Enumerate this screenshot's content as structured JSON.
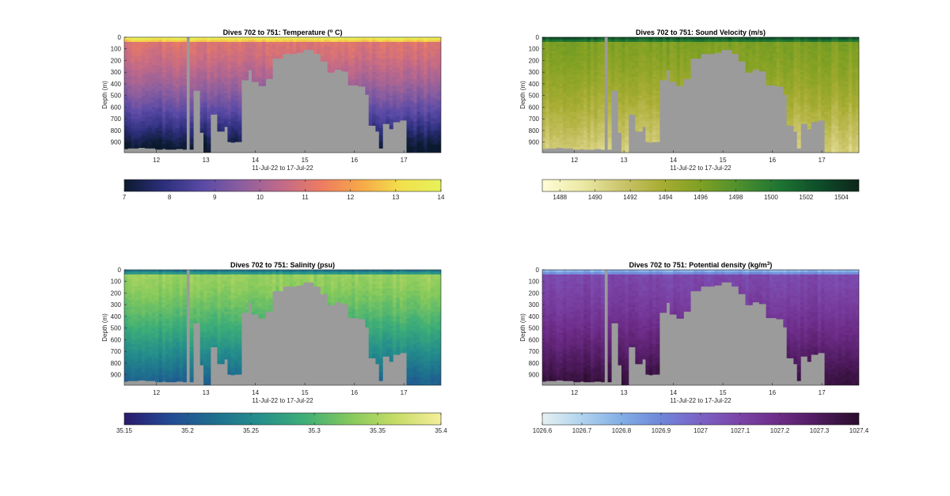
{
  "chart_data": [
    {
      "type": "heatmap",
      "title": "Dives 702 to 751: Temperature (",
      "title_sup": "o",
      "title_suffix": " C)",
      "xlabel": "11-Jul-22 to 17-Jul-22",
      "ylabel": "Depth (m)",
      "x_range": [
        11.35,
        17.75
      ],
      "y_range": [
        0,
        990
      ],
      "x_ticks": [
        "12",
        "13",
        "14",
        "15",
        "16",
        "17"
      ],
      "y_ticks": [
        "0",
        "100",
        "200",
        "300",
        "400",
        "500",
        "600",
        "700",
        "800",
        "900"
      ],
      "colorbar": {
        "min": 7,
        "max": 14,
        "ticks": [
          "7",
          "8",
          "9",
          "10",
          "11",
          "12",
          "13",
          "14"
        ],
        "colors": [
          "#0b1a2e",
          "#2d2f7c",
          "#5a4aa6",
          "#8e5f9e",
          "#c26a88",
          "#ee7c61",
          "#f6a948",
          "#f2e14c",
          "#e6f15a"
        ]
      },
      "value_profile": {
        "surface": 14,
        "mixed": 11,
        "deep": 7
      }
    },
    {
      "type": "heatmap",
      "title": "Dives 702 to 751: Sound Velocity (m/s)",
      "xlabel": "11-Jul-22 to 17-Jul-22",
      "ylabel": "Depth (m)",
      "x_range": [
        11.35,
        17.75
      ],
      "y_range": [
        0,
        990
      ],
      "x_ticks": [
        "12",
        "13",
        "14",
        "15",
        "16",
        "17"
      ],
      "y_ticks": [
        "0",
        "100",
        "200",
        "300",
        "400",
        "500",
        "600",
        "700",
        "800",
        "900"
      ],
      "colorbar": {
        "min": 1487,
        "max": 1505,
        "ticks": [
          "1488",
          "1490",
          "1492",
          "1494",
          "1496",
          "1498",
          "1500",
          "1502",
          "1504"
        ],
        "colors": [
          "#fefdd7",
          "#ece9a6",
          "#cbc56c",
          "#a8ad33",
          "#7fa023",
          "#4c8f2e",
          "#1e7432",
          "#0e4d2a",
          "#0d261a"
        ]
      },
      "value_profile": {
        "surface": 1503,
        "mixed": 1496,
        "deep": 1491
      }
    },
    {
      "type": "heatmap",
      "title": "Dives 702 to 751: Salinity (psu)",
      "xlabel": "11-Jul-22 to 17-Jul-22",
      "ylabel": "Depth (m)",
      "x_range": [
        11.35,
        17.75
      ],
      "y_range": [
        0,
        990
      ],
      "x_ticks": [
        "12",
        "13",
        "14",
        "15",
        "16",
        "17"
      ],
      "y_ticks": [
        "0",
        "100",
        "200",
        "300",
        "400",
        "500",
        "600",
        "700",
        "800",
        "900"
      ],
      "colorbar": {
        "min": 35.15,
        "max": 35.4,
        "ticks": [
          "35.15",
          "35.2",
          "35.25",
          "35.3",
          "35.35",
          "35.4"
        ],
        "colors": [
          "#2a1a6c",
          "#234a94",
          "#1e6f8e",
          "#258f8b",
          "#3fae77",
          "#85c95c",
          "#c6dc66",
          "#f6ee9c"
        ]
      },
      "value_profile": {
        "surface": 35.22,
        "mixed": 35.34,
        "deep": 35.21
      }
    },
    {
      "type": "heatmap",
      "title": "Dives 702 to 751: Potential density (kg/m",
      "title_sup": "3",
      "title_suffix": ")",
      "xlabel": "11-Jul-22 to 17-Jul-22",
      "ylabel": "Depth (m)",
      "x_range": [
        11.35,
        17.75
      ],
      "y_range": [
        0,
        990
      ],
      "x_ticks": [
        "12",
        "13",
        "14",
        "15",
        "16",
        "17"
      ],
      "y_ticks": [
        "0",
        "100",
        "200",
        "300",
        "400",
        "500",
        "600",
        "700",
        "800",
        "900"
      ],
      "colorbar": {
        "min": 1026.6,
        "max": 1027.4,
        "ticks": [
          "1026.6",
          "1026.7",
          "1026.8",
          "1026.9",
          "1027",
          "1027.1",
          "1027.2",
          "1027.3",
          "1027.4"
        ],
        "colors": [
          "#e6f1f2",
          "#b0d3ee",
          "#82aee5",
          "#6f86d8",
          "#7b62c4",
          "#7b43a6",
          "#6b2b86",
          "#4d1a5c",
          "#2a0d2c"
        ]
      },
      "value_profile": {
        "surface": 1026.75,
        "mixed": 1027.08,
        "deep": 1027.36
      }
    }
  ],
  "gap_color": "#9b9b9b",
  "missing_dive_columns": [
    [
      12.58,
      12.68
    ]
  ],
  "max_depth_profile": [
    [
      11.35,
      955
    ],
    [
      11.45,
      950
    ],
    [
      11.6,
      945
    ],
    [
      11.8,
      950
    ],
    [
      11.9,
      950
    ],
    [
      12.0,
      960
    ],
    [
      12.1,
      955
    ],
    [
      12.2,
      960
    ],
    [
      12.4,
      955
    ],
    [
      12.55,
      960
    ],
    [
      12.72,
      455
    ],
    [
      12.85,
      815
    ],
    [
      12.98,
      990
    ],
    [
      13.1,
      660
    ],
    [
      13.22,
      805
    ],
    [
      13.35,
      765
    ],
    [
      13.45,
      895
    ],
    [
      13.5,
      900
    ],
    [
      13.55,
      895
    ],
    [
      13.7,
      365
    ],
    [
      13.85,
      280
    ],
    [
      13.95,
      380
    ],
    [
      14.08,
      415
    ],
    [
      14.2,
      355
    ],
    [
      14.35,
      180
    ],
    [
      14.55,
      140
    ],
    [
      14.8,
      130
    ],
    [
      15.0,
      105
    ],
    [
      15.15,
      140
    ],
    [
      15.3,
      205
    ],
    [
      15.45,
      300
    ],
    [
      15.6,
      275
    ],
    [
      15.75,
      290
    ],
    [
      15.9,
      410
    ],
    [
      16.1,
      420
    ],
    [
      16.25,
      490
    ],
    [
      16.32,
      755
    ],
    [
      16.4,
      805
    ],
    [
      16.5,
      950
    ],
    [
      16.6,
      740
    ],
    [
      16.7,
      785
    ],
    [
      16.8,
      725
    ],
    [
      16.95,
      710
    ],
    [
      17.05,
      990
    ],
    [
      17.75,
      990
    ]
  ]
}
